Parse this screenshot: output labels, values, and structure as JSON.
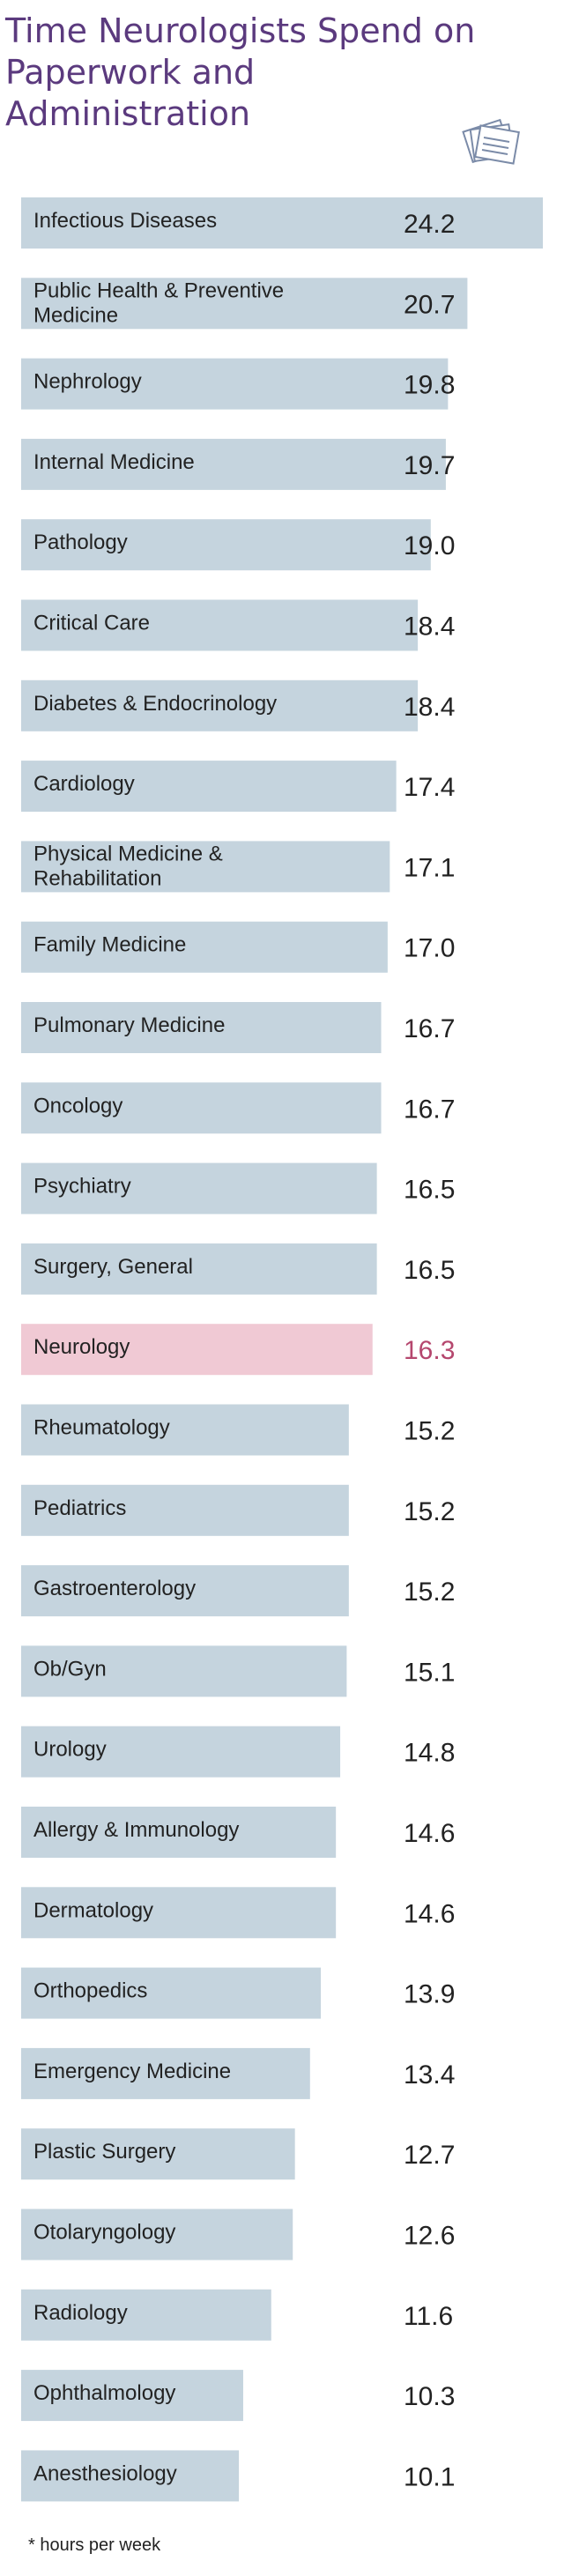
{
  "title": "Time Neurologists Spend on Paperwork and Administration",
  "footnote": "* hours per week",
  "icon": "paper-stack-icon",
  "colors": {
    "bar": "#c5d4de",
    "highlight_bar": "#f0c9d4",
    "highlight_text": "#b5476e",
    "text": "#222222",
    "title": "#5b3a7e"
  },
  "chart_data": {
    "type": "bar",
    "orientation": "horizontal",
    "title": "Time Neurologists Spend on Paperwork and Administration",
    "xlabel": "",
    "ylabel": "",
    "unit_note": "* hours per week",
    "highlight": "Neurology",
    "categories": [
      [
        "Infectious Diseases"
      ],
      [
        "Public Health & Preventive",
        "Medicine"
      ],
      [
        "Nephrology"
      ],
      [
        "Internal Medicine"
      ],
      [
        "Pathology"
      ],
      [
        "Critical Care"
      ],
      [
        "Diabetes & Endocrinology"
      ],
      [
        "Cardiology"
      ],
      [
        "Physical Medicine &",
        "Rehabilitation"
      ],
      [
        "Family Medicine"
      ],
      [
        "Pulmonary Medicine"
      ],
      [
        "Oncology"
      ],
      [
        "Psychiatry"
      ],
      [
        "Surgery, General"
      ],
      [
        "Neurology"
      ],
      [
        "Rheumatology"
      ],
      [
        "Pediatrics"
      ],
      [
        "Gastroenterology"
      ],
      [
        "Ob/Gyn"
      ],
      [
        "Urology"
      ],
      [
        "Allergy & Immunology"
      ],
      [
        "Dermatology"
      ],
      [
        "Orthopedics"
      ],
      [
        "Emergency Medicine"
      ],
      [
        "Plastic Surgery"
      ],
      [
        "Otolaryngology"
      ],
      [
        "Radiology"
      ],
      [
        "Ophthalmology"
      ],
      [
        "Anesthesiology"
      ]
    ],
    "values": [
      24.2,
      20.7,
      19.8,
      19.7,
      19.0,
      18.4,
      18.4,
      17.4,
      17.1,
      17.0,
      16.7,
      16.7,
      16.5,
      16.5,
      16.3,
      15.2,
      15.2,
      15.2,
      15.1,
      14.8,
      14.6,
      14.6,
      13.9,
      13.4,
      12.7,
      12.6,
      11.6,
      10.3,
      10.1
    ],
    "value_labels": [
      "24.2",
      "20.7",
      "19.8",
      "19.7",
      "19.0",
      "18.4",
      "18.4",
      "17.4",
      "17.1",
      "17.0",
      "16.7",
      "16.7",
      "16.5",
      "16.5",
      "16.3",
      "15.2",
      "15.2",
      "15.2",
      "15.1",
      "14.8",
      "14.6",
      "14.6",
      "13.9",
      "13.4",
      "12.7",
      "12.6",
      "11.6",
      "10.3",
      "10.1"
    ],
    "xlim": [
      0,
      24.2
    ],
    "grid": false,
    "legend": "none"
  }
}
